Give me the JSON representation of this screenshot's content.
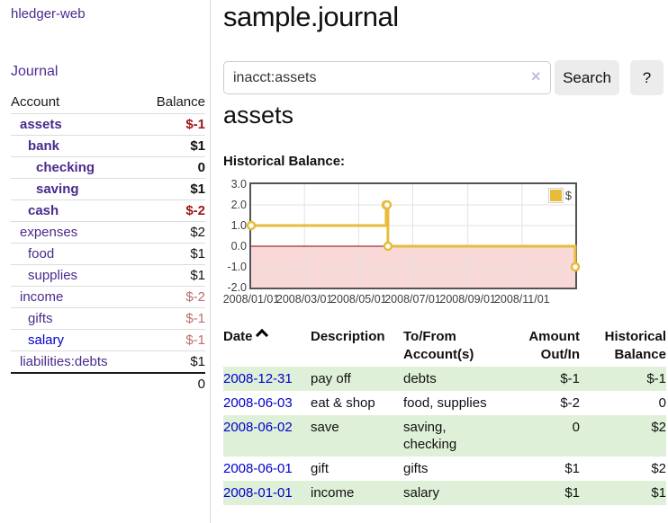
{
  "sidebar": {
    "app_title": "hledger-web",
    "nav": {
      "journal_label": "Journal"
    },
    "accounts_table": {
      "headers": {
        "account": "Account",
        "balance": "Balance"
      },
      "rows": [
        {
          "name": "assets",
          "balance": "$-1",
          "level": 1,
          "bold": true,
          "neg": "strong"
        },
        {
          "name": "bank",
          "balance": "$1",
          "level": 2,
          "bold": true
        },
        {
          "name": "checking",
          "balance": "0",
          "level": 3,
          "bold": true
        },
        {
          "name": "saving",
          "balance": "$1",
          "level": 3,
          "bold": true
        },
        {
          "name": "cash",
          "balance": "$-2",
          "level": 2,
          "bold": true,
          "neg": "strong"
        },
        {
          "name": "expenses",
          "balance": "$2",
          "level": 1,
          "bold": false
        },
        {
          "name": "food",
          "balance": "$1",
          "level": 2,
          "bold": false
        },
        {
          "name": "supplies",
          "balance": "$1",
          "level": 2,
          "bold": false
        },
        {
          "name": "income",
          "balance": "$-2",
          "level": 1,
          "bold": false,
          "neg": "soft"
        },
        {
          "name": "gifts",
          "balance": "$-1",
          "level": 2,
          "bold": false,
          "neg": "soft"
        },
        {
          "name": "salary",
          "balance": "$-1",
          "level": 2,
          "bold": false,
          "neg": "soft",
          "link": "blue"
        },
        {
          "name": "liabilities:debts",
          "balance": "$1",
          "level": 1,
          "bold": false
        }
      ],
      "total": "0"
    }
  },
  "main": {
    "title": "sample.journal",
    "search": {
      "value": "inacct:assets",
      "clear_icon": "×",
      "button_label": "Search",
      "help_label": "?"
    },
    "account_heading": "assets",
    "chart_label": "Historical Balance:",
    "register_table": {
      "headers": {
        "date": "Date",
        "description": "Description",
        "accounts": "To/From Account(s)",
        "amount": "Amount Out/In",
        "balance": "Historical Balance"
      },
      "sort_indicator": "ascending",
      "rows": [
        {
          "date": "2008-12-31",
          "description": "pay off",
          "accounts": "debts",
          "amount": "$-1",
          "balance": "$-1",
          "amount_negative": true,
          "balance_negative": true
        },
        {
          "date": "2008-06-03",
          "description": "eat & shop",
          "accounts": "food, supplies",
          "amount": "$-2",
          "balance": "0",
          "amount_negative": true,
          "balance_negative": false
        },
        {
          "date": "2008-06-02",
          "description": "save",
          "accounts": "saving,\nchecking",
          "amount": "0",
          "balance": "$2",
          "amount_negative": false,
          "balance_negative": false
        },
        {
          "date": "2008-06-01",
          "description": "gift",
          "accounts": "gifts",
          "amount": "$1",
          "balance": "$2",
          "amount_negative": false,
          "balance_negative": false
        },
        {
          "date": "2008-01-01",
          "description": "income",
          "accounts": "salary",
          "amount": "$1",
          "balance": "$1",
          "amount_negative": false,
          "balance_negative": false
        }
      ]
    }
  },
  "chart_data": {
    "type": "line",
    "title": "Historical Balance",
    "step": true,
    "series": [
      {
        "name": "$",
        "color": "#e8bb3a",
        "points": [
          {
            "date": "2008-01-01",
            "value": 1
          },
          {
            "date": "2008-06-01",
            "value": 2
          },
          {
            "date": "2008-06-02",
            "value": 2
          },
          {
            "date": "2008-06-03",
            "value": 0
          },
          {
            "date": "2008-12-31",
            "value": -1
          }
        ]
      }
    ],
    "x_range": [
      "2008-01-01",
      "2008-12-31"
    ],
    "ylim": [
      -2,
      3
    ],
    "x_ticks": [
      "2008/01/01",
      "2008/03/01",
      "2008/05/01",
      "2008/07/01",
      "2008/09/01",
      "2008/11/01"
    ],
    "y_ticks": [
      3.0,
      2.0,
      1.0,
      0.0,
      -1.0,
      -2.0
    ],
    "legend": {
      "label": "$",
      "position": "top-right"
    },
    "grid": true,
    "negative_region_color": "#f9d8d8",
    "zero_line_color": "#8b0000",
    "border_color": "#545454"
  },
  "colors": {
    "link_purple": "#4a2a8c",
    "link_blue": "#0000cc",
    "negative_strong": "#9e1616",
    "negative_soft": "#bd6e6e",
    "row_green": "#dff0d8",
    "series_gold": "#e8bb3a"
  }
}
